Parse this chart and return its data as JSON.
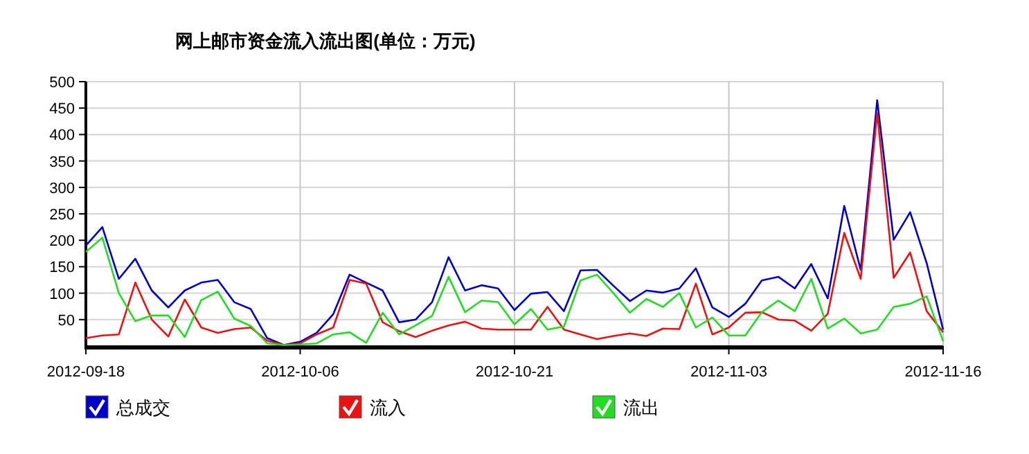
{
  "chart_data": {
    "type": "line",
    "title": "网上邮市资金流入流出图(单位：万元)",
    "categories": [
      "2012-09-18",
      null,
      null,
      null,
      null,
      null,
      null,
      null,
      null,
      null,
      null,
      null,
      null,
      "2012-10-06",
      null,
      null,
      null,
      null,
      null,
      null,
      null,
      null,
      null,
      null,
      null,
      null,
      "2012-10-21",
      null,
      null,
      null,
      null,
      null,
      null,
      null,
      null,
      null,
      null,
      null,
      null,
      "2012-11-03",
      null,
      null,
      null,
      null,
      null,
      null,
      null,
      null,
      null,
      null,
      null,
      null,
      "2012-11-16"
    ],
    "series": [
      {
        "name": "总成交",
        "color": "#0000cc",
        "values": [
          190,
          225,
          127,
          165,
          105,
          73,
          105,
          120,
          125,
          83,
          70,
          15,
          2,
          8,
          25,
          60,
          135,
          120,
          105,
          45,
          50,
          83,
          168,
          105,
          115,
          109,
          68,
          99,
          102,
          66,
          143,
          144,
          114,
          85,
          105,
          101,
          109,
          147,
          73,
          55,
          80,
          124,
          131,
          109,
          155,
          90,
          265,
          144,
          465,
          201,
          253,
          157,
          31
        ]
      },
      {
        "name": "流入",
        "color": "#ee1111",
        "values": [
          15,
          20,
          22,
          120,
          50,
          18,
          88,
          35,
          25,
          32,
          35,
          10,
          2,
          5,
          22,
          35,
          125,
          118,
          45,
          28,
          17,
          29,
          39,
          46,
          33,
          31,
          31,
          31,
          74,
          31,
          22,
          13,
          19,
          24,
          19,
          33,
          32,
          118,
          22,
          35,
          63,
          64,
          50,
          48,
          29,
          61,
          214,
          127,
          441,
          129,
          177,
          66,
          26
        ]
      },
      {
        "name": "流出",
        "color": "#22dd22",
        "values": [
          178,
          205,
          100,
          47,
          58,
          58,
          17,
          87,
          103,
          52,
          38,
          5,
          2,
          3,
          5,
          22,
          26,
          6,
          63,
          22,
          39,
          57,
          131,
          64,
          86,
          83,
          41,
          70,
          31,
          37,
          124,
          135,
          100,
          63,
          89,
          74,
          100,
          35,
          54,
          20,
          20,
          64,
          86,
          66,
          127,
          33,
          52,
          24,
          31,
          74,
          80,
          94,
          9
        ]
      }
    ],
    "ylim": [
      0,
      500
    ],
    "yticks": [
      50,
      100,
      150,
      200,
      250,
      300,
      350,
      400,
      450,
      500
    ],
    "grid": true,
    "legend": "bottom",
    "marker": "none",
    "line_style": "solid"
  }
}
